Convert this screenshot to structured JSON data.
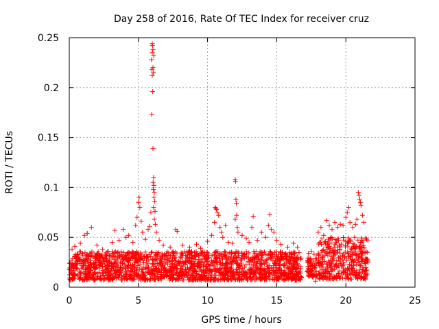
{
  "chart_data": {
    "type": "scatter",
    "title": "Day 258 of 2016, Rate Of TEC Index for receiver cruz",
    "xlabel": "GPS time / hours",
    "ylabel": "ROTI / TECUs",
    "xlim": [
      0,
      25
    ],
    "ylim": [
      0,
      0.25
    ],
    "xticks": [
      0,
      5,
      10,
      15,
      20,
      25
    ],
    "yticks": [
      0,
      0.05,
      0.1,
      0.15,
      0.2,
      0.25
    ],
    "xtick_labels": [
      "0",
      "5",
      "10",
      "15",
      "20",
      "25"
    ],
    "ytick_labels": [
      "0",
      "0.05",
      "0.1",
      "0.15",
      "0.2",
      "0.25"
    ],
    "grid": true,
    "marker": "+",
    "color": "#ff0000",
    "series": [
      {
        "name": "ROTI",
        "bands": [
          {
            "x_start": 0.0,
            "x_end": 16.8,
            "low": 0.007,
            "high": 0.036
          },
          {
            "x_start": 17.2,
            "x_end": 17.9,
            "low": 0.01,
            "high": 0.03
          },
          {
            "x_start": 18.0,
            "x_end": 21.6,
            "low": 0.008,
            "high": 0.05
          }
        ],
        "points": [
          [
            0.2,
            0.038
          ],
          [
            0.4,
            0.041
          ],
          [
            0.8,
            0.044
          ],
          [
            1.1,
            0.052
          ],
          [
            1.3,
            0.054
          ],
          [
            1.6,
            0.06
          ],
          [
            2.0,
            0.042
          ],
          [
            2.4,
            0.038
          ],
          [
            3.1,
            0.045
          ],
          [
            3.3,
            0.057
          ],
          [
            3.6,
            0.047
          ],
          [
            3.9,
            0.058
          ],
          [
            4.1,
            0.05
          ],
          [
            4.3,
            0.052
          ],
          [
            4.6,
            0.045
          ],
          [
            4.8,
            0.062
          ],
          [
            4.9,
            0.07
          ],
          [
            5.0,
            0.085
          ],
          [
            5.05,
            0.09
          ],
          [
            5.1,
            0.08
          ],
          [
            5.2,
            0.066
          ],
          [
            5.3,
            0.055
          ],
          [
            5.5,
            0.048
          ],
          [
            5.7,
            0.058
          ],
          [
            5.8,
            0.061
          ],
          [
            5.9,
            0.075
          ],
          [
            6.0,
            0.244
          ],
          [
            6.02,
            0.242
          ],
          [
            6.05,
            0.238
          ],
          [
            6.0,
            0.235
          ],
          [
            6.1,
            0.232
          ],
          [
            5.95,
            0.228
          ],
          [
            6.05,
            0.22
          ],
          [
            5.98,
            0.218
          ],
          [
            6.08,
            0.215
          ],
          [
            6.0,
            0.212
          ],
          [
            6.02,
            0.196
          ],
          [
            5.96,
            0.173
          ],
          [
            6.05,
            0.139
          ],
          [
            6.1,
            0.11
          ],
          [
            6.06,
            0.105
          ],
          [
            6.12,
            0.102
          ],
          [
            6.08,
            0.098
          ],
          [
            6.15,
            0.095
          ],
          [
            6.12,
            0.09
          ],
          [
            6.18,
            0.086
          ],
          [
            6.1,
            0.08
          ],
          [
            6.2,
            0.076
          ],
          [
            6.15,
            0.068
          ],
          [
            6.22,
            0.063
          ],
          [
            6.3,
            0.055
          ],
          [
            6.5,
            0.047
          ],
          [
            6.8,
            0.042
          ],
          [
            7.3,
            0.04
          ],
          [
            7.7,
            0.058
          ],
          [
            7.8,
            0.056
          ],
          [
            8.2,
            0.042
          ],
          [
            8.7,
            0.04
          ],
          [
            9.2,
            0.043
          ],
          [
            9.5,
            0.039
          ],
          [
            10.0,
            0.046
          ],
          [
            10.3,
            0.052
          ],
          [
            10.5,
            0.065
          ],
          [
            10.55,
            0.08
          ],
          [
            10.6,
            0.079
          ],
          [
            10.65,
            0.078
          ],
          [
            10.7,
            0.075
          ],
          [
            10.8,
            0.072
          ],
          [
            10.9,
            0.06
          ],
          [
            11.0,
            0.055
          ],
          [
            11.1,
            0.05
          ],
          [
            11.3,
            0.062
          ],
          [
            11.5,
            0.045
          ],
          [
            11.8,
            0.044
          ],
          [
            12.0,
            0.108
          ],
          [
            12.02,
            0.106
          ],
          [
            12.05,
            0.088
          ],
          [
            12.08,
            0.084
          ],
          [
            12.1,
            0.072
          ],
          [
            12.0,
            0.068
          ],
          [
            12.15,
            0.06
          ],
          [
            12.2,
            0.055
          ],
          [
            12.5,
            0.052
          ],
          [
            12.8,
            0.049
          ],
          [
            13.0,
            0.045
          ],
          [
            13.2,
            0.06
          ],
          [
            13.3,
            0.071
          ],
          [
            13.6,
            0.047
          ],
          [
            13.9,
            0.055
          ],
          [
            14.2,
            0.05
          ],
          [
            14.5,
            0.073
          ],
          [
            14.4,
            0.062
          ],
          [
            14.6,
            0.058
          ],
          [
            14.8,
            0.055
          ],
          [
            15.0,
            0.047
          ],
          [
            15.3,
            0.043
          ],
          [
            15.8,
            0.04
          ],
          [
            16.2,
            0.044
          ],
          [
            16.5,
            0.04
          ],
          [
            17.3,
            0.034
          ],
          [
            17.5,
            0.036
          ],
          [
            17.7,
            0.033
          ],
          [
            17.8,
            0.006
          ],
          [
            18.0,
            0.055
          ],
          [
            18.2,
            0.06
          ],
          [
            18.4,
            0.052
          ],
          [
            18.6,
            0.067
          ],
          [
            18.8,
            0.062
          ],
          [
            19.0,
            0.058
          ],
          [
            19.2,
            0.065
          ],
          [
            19.4,
            0.06
          ],
          [
            19.6,
            0.063
          ],
          [
            19.8,
            0.062
          ],
          [
            20.0,
            0.07
          ],
          [
            20.1,
            0.075
          ],
          [
            20.2,
            0.08
          ],
          [
            20.3,
            0.065
          ],
          [
            20.5,
            0.06
          ],
          [
            20.7,
            0.063
          ],
          [
            20.8,
            0.068
          ],
          [
            20.9,
            0.095
          ],
          [
            20.95,
            0.092
          ],
          [
            21.0,
            0.088
          ],
          [
            21.05,
            0.085
          ],
          [
            21.1,
            0.082
          ],
          [
            21.2,
            0.072
          ],
          [
            21.3,
            0.065
          ],
          [
            21.5,
            0.048
          ]
        ]
      }
    ]
  }
}
